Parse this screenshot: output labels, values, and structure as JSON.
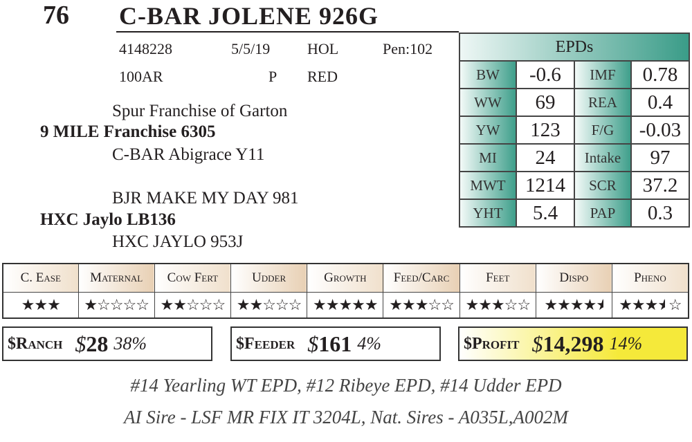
{
  "lot": "76",
  "name": "C-BAR JOLENE 926G",
  "registration": "4148228",
  "birth_date": "5/5/19",
  "tattoo": "HOL",
  "pen": "Pen:102",
  "row2": {
    "a": "100AR",
    "b": "P",
    "c": "RED"
  },
  "pedigree": {
    "sire_sire": "Spur Franchise of Garton",
    "sire": "9 MILE Franchise 6305",
    "sire_dam": "C-BAR Abigrace Y11",
    "dam_sire": "BJR MAKE MY DAY 981",
    "dam": "HXC Jaylo LB136",
    "dam_dam": "HXC JAYLO 953J"
  },
  "epds": {
    "title": "EPDs",
    "rows": [
      [
        "BW",
        "-0.6",
        "IMF",
        "0.78"
      ],
      [
        "WW",
        "69",
        "REA",
        "0.4"
      ],
      [
        "YW",
        "123",
        "F/G",
        "-0.03"
      ],
      [
        "MI",
        "24",
        "Intake",
        "97"
      ],
      [
        "MWT",
        "1214",
        "SCR",
        "37.2"
      ],
      [
        "YHT",
        "5.4",
        "PAP",
        "0.3"
      ]
    ]
  },
  "traits": [
    {
      "label": "C. Ease",
      "rating": 3,
      "of": 3
    },
    {
      "label": "Maternal",
      "rating": 1,
      "of": 5
    },
    {
      "label": "Cow Fert",
      "rating": 2,
      "of": 5
    },
    {
      "label": "Udder",
      "rating": 2,
      "of": 5
    },
    {
      "label": "Growth",
      "rating": 5,
      "of": 5
    },
    {
      "label": "Feed/Carc",
      "rating": 3,
      "of": 5
    },
    {
      "label": "Feet",
      "rating": 3,
      "of": 5
    },
    {
      "label": "Dispo",
      "rating": 4.5,
      "of": 5
    },
    {
      "label": "Pheno",
      "rating": 3.5,
      "of": 5
    }
  ],
  "indexes": {
    "ranch": {
      "label": "$Ranch",
      "dollar": "$",
      "value": "28",
      "pct": "38%"
    },
    "feeder": {
      "label": "$Feeder",
      "dollar": "$",
      "value": "161",
      "pct": "4%"
    },
    "profit": {
      "label": "$Profit",
      "dollar": "$",
      "value": "14,298",
      "pct": "14%",
      "highlight": "#f5e93a"
    }
  },
  "footnotes": [
    "#14 Yearling WT EPD, #12 Ribeye EPD, #14 Udder EPD",
    "AI Sire - LSF MR FIX IT 3204L, Nat. Sires - A035L,A002M"
  ]
}
